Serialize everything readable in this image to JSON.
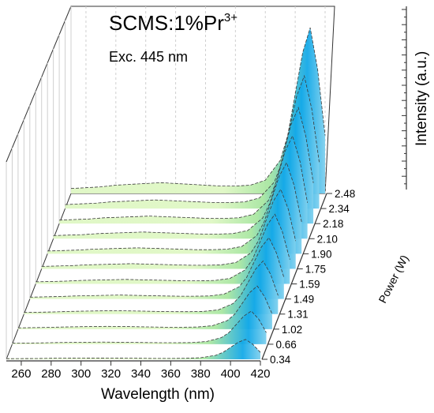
{
  "chart_data": {
    "type": "line",
    "render": "3d-waterfall",
    "title_main": "SCMS:1%Pr",
    "title_sup": "3+",
    "subtitle": "Exc. 445 nm",
    "xlabel": "Wavelength (nm)",
    "ylabel": "Power (W)",
    "zlabel": "Intensity (a.u.)",
    "x_ticks": [
      "260",
      "280",
      "300",
      "320",
      "340",
      "360",
      "380",
      "400",
      "420"
    ],
    "x_range": [
      250,
      420
    ],
    "y_ticks": [
      "0.34",
      "0.66",
      "1.02",
      "1.31",
      "1.49",
      "1.59",
      "1.75",
      "1.90",
      "2.10",
      "2.18",
      "2.34",
      "2.48"
    ],
    "x": [
      250,
      260,
      270,
      280,
      290,
      300,
      310,
      320,
      330,
      340,
      350,
      360,
      370,
      380,
      390,
      395,
      400,
      405,
      410,
      415,
      420
    ],
    "base_profile": [
      0.03,
      0.035,
      0.04,
      0.05,
      0.055,
      0.06,
      0.065,
      0.06,
      0.055,
      0.05,
      0.045,
      0.045,
      0.05,
      0.08,
      0.2,
      0.35,
      0.6,
      0.85,
      1.0,
      0.75,
      0.35
    ],
    "peak_heights": [
      0.12,
      0.2,
      0.26,
      0.32,
      0.37,
      0.42,
      0.48,
      0.55,
      0.62,
      0.7,
      0.8,
      1.0
    ],
    "colors": {
      "fill_low": "#dff7c4",
      "fill_mid": "#a8e6a1",
      "fill_peak": "#14a9e8",
      "line": "#3a3a3a",
      "grid": "#cfcfcf",
      "axis": "#333333"
    }
  }
}
